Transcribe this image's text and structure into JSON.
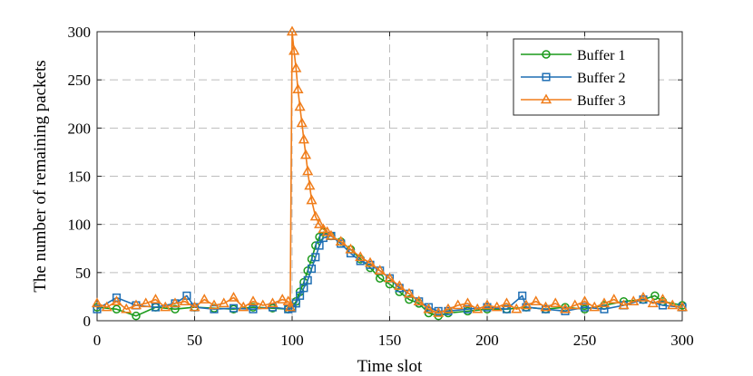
{
  "chart_data": {
    "type": "line",
    "xlabel": "Time slot",
    "ylabel": "The number of remaining packets",
    "xlim": [
      0,
      300
    ],
    "ylim": [
      0,
      300
    ],
    "xticks": [
      "0",
      "50",
      "100",
      "150",
      "200",
      "250",
      "300"
    ],
    "yticks": [
      "0",
      "50",
      "100",
      "150",
      "200",
      "250",
      "300"
    ],
    "grid": true,
    "legend_position": "top-right",
    "series": [
      {
        "name": "Buffer 1",
        "color": "#1a9a1a",
        "marker": "circle",
        "x": [
          0,
          10,
          20,
          30,
          40,
          50,
          60,
          70,
          80,
          90,
          98,
          100,
          102,
          104,
          106,
          108,
          110,
          112,
          114,
          116,
          120,
          125,
          130,
          135,
          140,
          145,
          150,
          155,
          160,
          165,
          170,
          175,
          180,
          190,
          200,
          210,
          220,
          230,
          240,
          250,
          260,
          270,
          280,
          286,
          290,
          300
        ],
        "y": [
          14,
          12,
          5,
          14,
          12,
          14,
          13,
          12,
          14,
          13,
          12,
          14,
          20,
          30,
          40,
          52,
          64,
          78,
          87,
          92,
          88,
          82,
          74,
          64,
          55,
          44,
          38,
          30,
          22,
          18,
          8,
          5,
          8,
          10,
          12,
          12,
          14,
          12,
          14,
          12,
          16,
          20,
          22,
          26,
          20,
          16
        ]
      },
      {
        "name": "Buffer 2",
        "color": "#1f6fb4",
        "marker": "square",
        "x": [
          0,
          10,
          20,
          30,
          40,
          46,
          50,
          60,
          70,
          80,
          90,
          98,
          100,
          102,
          104,
          106,
          108,
          110,
          112,
          114,
          116,
          120,
          125,
          130,
          135,
          140,
          145,
          150,
          155,
          160,
          165,
          170,
          175,
          180,
          190,
          200,
          210,
          218,
          220,
          230,
          240,
          250,
          260,
          270,
          280,
          290,
          300
        ],
        "y": [
          12,
          24,
          16,
          14,
          18,
          26,
          14,
          12,
          13,
          12,
          14,
          12,
          13,
          18,
          26,
          34,
          42,
          54,
          66,
          78,
          86,
          88,
          80,
          70,
          62,
          58,
          52,
          44,
          34,
          28,
          20,
          14,
          10,
          10,
          12,
          14,
          12,
          26,
          14,
          12,
          10,
          14,
          12,
          16,
          22,
          16,
          14
        ]
      },
      {
        "name": "Buffer 3",
        "color": "#f07d1a",
        "marker": "triangle",
        "x": [
          0,
          5,
          10,
          15,
          20,
          25,
          30,
          35,
          40,
          45,
          50,
          55,
          60,
          65,
          70,
          75,
          80,
          85,
          90,
          95,
          98,
          99,
          100,
          101,
          102,
          103,
          104,
          105,
          106,
          107,
          108,
          109,
          110,
          112,
          114,
          116,
          118,
          120,
          125,
          130,
          135,
          140,
          145,
          150,
          155,
          160,
          165,
          170,
          175,
          180,
          185,
          190,
          195,
          200,
          205,
          210,
          215,
          220,
          225,
          230,
          235,
          240,
          245,
          250,
          255,
          260,
          265,
          270,
          275,
          280,
          285,
          290,
          295,
          300
        ],
        "y": [
          18,
          14,
          20,
          12,
          16,
          18,
          22,
          14,
          18,
          20,
          14,
          22,
          16,
          18,
          24,
          14,
          20,
          16,
          18,
          22,
          20,
          14,
          300,
          280,
          262,
          240,
          222,
          205,
          188,
          172,
          155,
          140,
          125,
          108,
          100,
          95,
          92,
          88,
          82,
          74,
          66,
          60,
          52,
          44,
          36,
          28,
          20,
          12,
          8,
          12,
          16,
          18,
          12,
          16,
          14,
          18,
          12,
          16,
          20,
          14,
          18,
          12,
          16,
          20,
          14,
          18,
          22,
          16,
          20,
          24,
          18,
          22,
          16,
          14
        ]
      }
    ]
  }
}
